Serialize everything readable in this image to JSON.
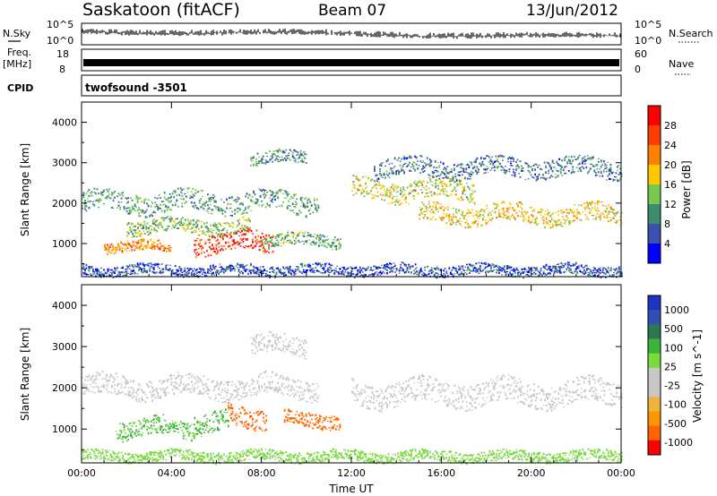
{
  "header": {
    "station": "Saskatoon (fitACF)",
    "beam": "Beam 07",
    "date": "13/Jun/2012"
  },
  "summary_panels": {
    "nsky": {
      "left_label": "N.Sky",
      "right_label": "N.Search",
      "left_ticks": [
        "10^5",
        "10^0"
      ],
      "right_ticks": [
        "10^5",
        "10^0"
      ]
    },
    "freq": {
      "left_label_line1": "Freq.",
      "left_label_line2": "[MHz]",
      "right_label": "Nave",
      "left_ticks": [
        "18",
        "8"
      ],
      "right_ticks": [
        "60",
        "0"
      ]
    },
    "cpid": {
      "left_label": "CPID",
      "program": "twofsound -3501"
    }
  },
  "colors": {
    "power_scale": [
      "#0000ff",
      "#3c50b0",
      "#3c8c6e",
      "#78c850",
      "#ffc800",
      "#ff8200",
      "#ff3c00",
      "#ff0000"
    ],
    "velocity_scale": [
      "#ff0000",
      "#ff6400",
      "#ff9600",
      "#f0b43c",
      "#c8c8c8",
      "#c8c8c8",
      "#78dc3c",
      "#3cb43c",
      "#2d7850",
      "#3250b4",
      "#1e32c8"
    ],
    "ground_scatter": "#c8c8c8"
  },
  "chart_data": [
    {
      "type": "heatmap",
      "panel": "power",
      "xlabel": "Time UT",
      "ylabel": "Slant Range [km]",
      "xlim": [
        0,
        24
      ],
      "ylim": [
        180,
        4500
      ],
      "x_ticks": [
        "00:00",
        "04:00",
        "08:00",
        "12:00",
        "16:00",
        "20:00",
        "00:00"
      ],
      "y_ticks": [
        1000,
        2000,
        3000,
        4000
      ],
      "colorbar": {
        "label": "Power [dB]",
        "range": [
          0,
          32
        ],
        "tick_labels": [
          "4",
          "8",
          "12",
          "16",
          "20",
          "24",
          "28"
        ]
      },
      "features": [
        {
          "t_start": 0.0,
          "t_end": 10.5,
          "r_center": 2000,
          "r_width": 500,
          "value": 11
        },
        {
          "t_start": 2.0,
          "t_end": 7.5,
          "r_center": 1400,
          "r_width": 350,
          "value": 14
        },
        {
          "t_start": 5.0,
          "t_end": 8.5,
          "r_center": 1000,
          "r_width": 500,
          "value": 28
        },
        {
          "t_start": 1.0,
          "t_end": 4.0,
          "r_center": 900,
          "r_width": 250,
          "value": 22
        },
        {
          "t_start": 8.0,
          "t_end": 11.5,
          "r_center": 1050,
          "r_width": 300,
          "value": 12
        },
        {
          "t_start": 7.5,
          "t_end": 10.0,
          "r_center": 3100,
          "r_width": 300,
          "value": 10
        },
        {
          "t_start": 12.0,
          "t_end": 17.5,
          "r_center": 2300,
          "r_width": 500,
          "value": 16
        },
        {
          "t_start": 15.0,
          "t_end": 24.0,
          "r_center": 1700,
          "r_width": 450,
          "value": 18
        },
        {
          "t_start": 13.0,
          "t_end": 24.0,
          "r_center": 2850,
          "r_width": 450,
          "value": 8
        },
        {
          "t_start": 0.0,
          "t_end": 24.0,
          "r_center": 320,
          "r_width": 250,
          "value": 6
        }
      ]
    },
    {
      "type": "heatmap",
      "panel": "velocity",
      "xlabel": "Time UT",
      "ylabel": "Slant Range [km]",
      "xlim": [
        0,
        24
      ],
      "ylim": [
        180,
        4500
      ],
      "x_ticks": [
        "00:00",
        "04:00",
        "08:00",
        "12:00",
        "16:00",
        "20:00",
        "00:00"
      ],
      "y_ticks": [
        1000,
        2000,
        3000,
        4000
      ],
      "colorbar": {
        "label": "Velocity [m s^-1]",
        "range": [
          -1000,
          1000
        ],
        "tick_labels": [
          "1000",
          "500",
          "100",
          "25",
          "-25",
          "-100",
          "-500",
          "-1000"
        ]
      },
      "features": [
        {
          "t_start": 0.0,
          "t_end": 10.5,
          "r_center": 2000,
          "r_width": 500,
          "value": 0
        },
        {
          "t_start": 12.0,
          "t_end": 24.0,
          "r_center": 1850,
          "r_width": 600,
          "value": 0
        },
        {
          "t_start": 1.5,
          "t_end": 5.0,
          "r_center": 1000,
          "r_width": 450,
          "value": 120
        },
        {
          "t_start": 5.0,
          "t_end": 6.5,
          "r_center": 1100,
          "r_width": 500,
          "value": 150
        },
        {
          "t_start": 6.5,
          "t_end": 8.2,
          "r_center": 1300,
          "r_width": 500,
          "value": -250
        },
        {
          "t_start": 9.0,
          "t_end": 11.5,
          "r_center": 1200,
          "r_width": 350,
          "value": -180
        },
        {
          "t_start": 7.5,
          "t_end": 10.0,
          "r_center": 3000,
          "r_width": 450,
          "value": 0
        },
        {
          "t_start": 0.0,
          "t_end": 24.0,
          "r_center": 320,
          "r_width": 250,
          "value": 40
        }
      ]
    }
  ]
}
